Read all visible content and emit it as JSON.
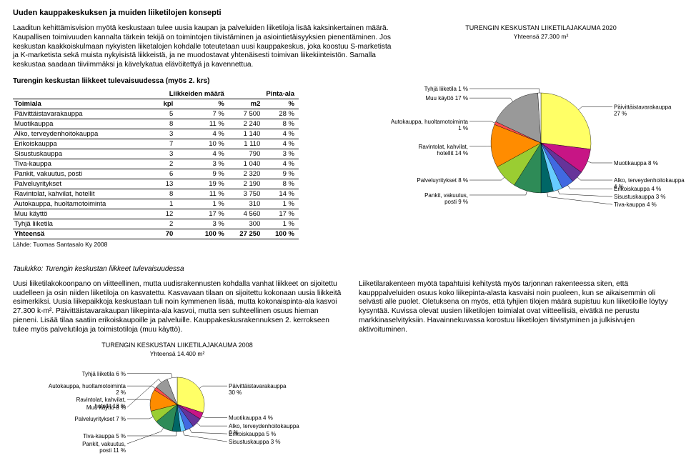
{
  "title": "Uuden kauppakeskuksen ja muiden liiketilojen konsepti",
  "intro": "Laaditun kehittämisvision myötä keskustaan tulee uusia kaupan ja palveluiden liiketiloja lisää kaksinkertainen määrä. Kaupallisen toimivuuden kannalta tärkein tekijä on toimintojen tiivistäminen ja asiointietäisyyksien pienentäminen. Jos keskustan kaakkoiskulmaan nykyisten liiketalojen kohdalle toteutetaan uusi kauppakeskus, joka koostuu S-marketista ja K-marketista sekä muista nykyisistä liikkeistä, ja ne muodostavat yhtenäisesti toimivan liikekiinteistön. Samalla keskustaa saadaan tiiviimmäksi ja kävelykatua elävöitettyä ja kavennettua.",
  "table": {
    "title": "Turengin keskustan liikkeet tulevaisuudessa (myös 2. krs)",
    "grouphead1": "Liikkeiden määrä",
    "grouphead2": "Pinta-ala",
    "cols": [
      "Toimiala",
      "kpl",
      "%",
      "m2",
      "%"
    ],
    "rows": [
      [
        "Päivittäistavarakauppa",
        "5",
        "7 %",
        "7 500",
        "28 %"
      ],
      [
        "Muotikauppa",
        "8",
        "11 %",
        "2 240",
        "8 %"
      ],
      [
        "Alko, terveydenhoitokauppa",
        "3",
        "4 %",
        "1 140",
        "4 %"
      ],
      [
        "Erikoiskauppa",
        "7",
        "10 %",
        "1 110",
        "4 %"
      ],
      [
        "Sisustuskauppa",
        "3",
        "4 %",
        "790",
        "3 %"
      ],
      [
        "Tiva-kauppa",
        "2",
        "3 %",
        "1 040",
        "4 %"
      ],
      [
        "Pankit, vakuutus, posti",
        "6",
        "9 %",
        "2 320",
        "9 %"
      ],
      [
        "Palveluyritykset",
        "13",
        "19 %",
        "2 190",
        "8 %"
      ],
      [
        "Ravintolat, kahvilat, hotellit",
        "8",
        "11 %",
        "3 750",
        "14 %"
      ],
      [
        "Autokauppa, huoltamotoiminta",
        "1",
        "1 %",
        "310",
        "1 %"
      ],
      [
        "Muu käyttö",
        "12",
        "17 %",
        "4 560",
        "17 %"
      ],
      [
        "Tyhjä liiketila",
        "2",
        "3 %",
        "300",
        "1 %"
      ]
    ],
    "total": [
      "Yhteensä",
      "70",
      "100 %",
      "27 250",
      "100 %"
    ],
    "source": "Lähde: Tuomas Santasalo Ky 2008"
  },
  "pie2020": {
    "title": "TURENGIN KESKUSTAN LIIKETILAJAKAUMA 2020",
    "subtitle": "Yhteensä 27.300 m²",
    "labels": [
      "Päivittäistavarakauppa 27 %",
      "Muotikauppa 8 %",
      "Alko, terveydenhoitokauppa 4 %",
      "Erikoiskauppa 4 %",
      "Sisustuskauppa 3 %",
      "Tiva-kauppa 4 %",
      "Pankit, vakuutus, posti 9 %",
      "Palveluyritykset 8 %",
      "Ravintolat, kahvilat, hotellit 14 %",
      "Autokauppa, huoltamotoiminta 1 %",
      "Muu käyttö 17 %",
      "Tyhjä liiketila 1 %"
    ],
    "values": [
      27,
      8,
      4,
      4,
      3,
      4,
      9,
      8,
      14,
      1,
      17,
      1
    ],
    "colors": [
      "#ffff66",
      "#c71585",
      "#663399",
      "#4169e1",
      "#66ccff",
      "#006666",
      "#2e8b57",
      "#9acd32",
      "#ff8c00",
      "#ff4d4d",
      "#999999",
      "#ffffff"
    ]
  },
  "caption": "Taulukko: Turengin keskustan liikkeet tulevaisuudessa",
  "body2a": "Uusi liiketilakokoonpano on viitteellinen, mutta uudisrakennusten kohdalla vanhat liikkeet on sijoitettu uudelleen ja osin niiden liiketiloja on kasvatettu. Kasvavaan tilaan on sijoitettu kokonaan uusia liikkeitä esimerkiksi. Uusia liikepaikkoja keskustaan tuli noin kymmenen lisää, mutta kokonaispinta-ala kasvoi 27.300 k-m². Päivittäistavarakaupan liikepinta-ala kasvoi, mutta sen suhteellinen osuus hieman pieneni. Lisää tilaa saatiin erikoiskaupoille ja palveluille. Kauppakeskusrakennuksen 2. kerrokseen tulee myös palvelutiloja ja toimistotiloja (muu käyttö).",
  "body2b": "Liiketilarakenteen myötä tapahtuisi kehitystä myös tarjonnan rakenteessa siten, että kaupppalveluiden osuus koko liikepinta-alasta kasvaisi noin puoleen, kun se aikaisemmin oli selvästi alle puolet. Oletuksena on myös, että tyhjien tilojen määrä supistuu kun liiketiloille löytyy kysyntää. Kuvissa olevat uusien liiketilojen toimialat ovat viitteellisiä, eivätkä ne perustu markkinaselvityksiin. Havainnekuvassa korostuu liiketilojen tiivistyminen ja julkisivujen aktivoituminen.",
  "pie2008": {
    "title": "TURENGIN KESKUSTAN LIIKETILAJAKAUMA 2008",
    "subtitle": "Yhteensä 14.400 m²",
    "labels": [
      "Päivittäistavarakauppa 30 %",
      "Muotikauppa 4 %",
      "Alko, terveydenhoitokauppa 6 %",
      "Erikoiskauppa 5 %",
      "Sisustuskauppa 3 %",
      "Tiva-kauppa 5 %",
      "Pankit, vakuutus, posti 11 %",
      "Palveluyritykset 7 %",
      "Ravintolat, kahvilat, hotellit 13 %",
      "Autokauppa, huoltamotoiminta 2 %",
      "Muu käyttö 8 %",
      "Tyhjä liiketila 6 %"
    ],
    "values": [
      30,
      4,
      6,
      5,
      3,
      5,
      11,
      7,
      13,
      2,
      8,
      6
    ],
    "colors": [
      "#ffff66",
      "#c71585",
      "#663399",
      "#4169e1",
      "#66ccff",
      "#006666",
      "#2e8b57",
      "#9acd32",
      "#ff8c00",
      "#ff4d4d",
      "#999999",
      "#ffffff"
    ]
  }
}
